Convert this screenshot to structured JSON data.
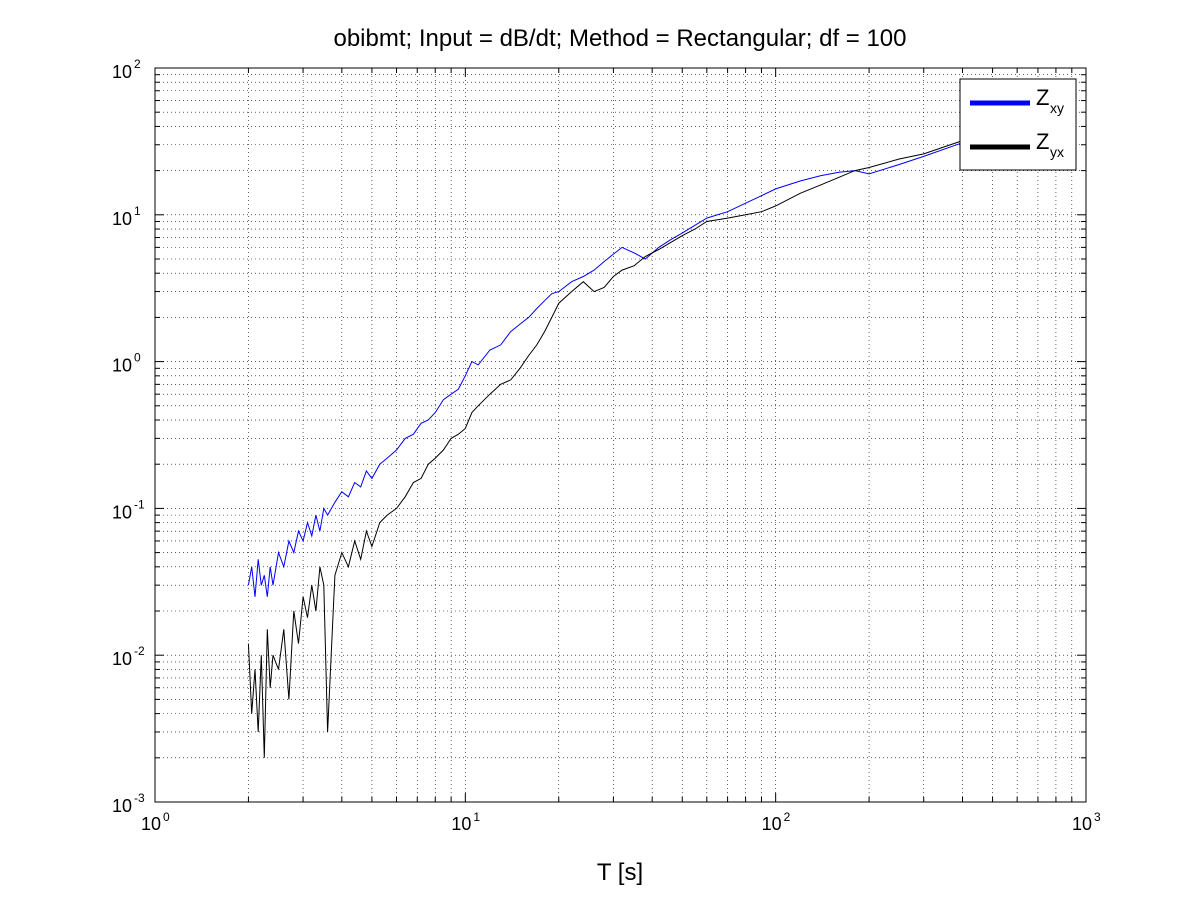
{
  "chart_data": {
    "type": "line",
    "title": "obibmt; Input = dB/dt; Method = Rectangular; df = 100",
    "xlabel": "T [s]",
    "ylabel": "",
    "xscale": "log",
    "yscale": "log",
    "xlim": [
      1,
      1000
    ],
    "ylim": [
      0.001,
      100
    ],
    "grid": true,
    "legend_position": "top-right",
    "x_tick_labels": [
      {
        "base": "10",
        "exp": "0"
      },
      {
        "base": "10",
        "exp": "1"
      },
      {
        "base": "10",
        "exp": "2"
      },
      {
        "base": "10",
        "exp": "3"
      }
    ],
    "y_tick_labels": [
      {
        "base": "10",
        "exp": "-3"
      },
      {
        "base": "10",
        "exp": "-2"
      },
      {
        "base": "10",
        "exp": "-1"
      },
      {
        "base": "10",
        "exp": "0"
      },
      {
        "base": "10",
        "exp": "1"
      },
      {
        "base": "10",
        "exp": "2"
      }
    ],
    "series": [
      {
        "name_main": "Z",
        "name_sub": "xy",
        "color": "#0000ff",
        "x": [
          2.0,
          2.05,
          2.1,
          2.15,
          2.2,
          2.25,
          2.3,
          2.35,
          2.4,
          2.5,
          2.6,
          2.7,
          2.8,
          2.9,
          3.0,
          3.1,
          3.2,
          3.3,
          3.4,
          3.5,
          3.6,
          3.8,
          4.0,
          4.2,
          4.4,
          4.6,
          4.8,
          5.0,
          5.3,
          5.6,
          6.0,
          6.4,
          6.8,
          7.2,
          7.6,
          8.0,
          8.5,
          9.0,
          9.5,
          10.0,
          10.5,
          11.0,
          12.0,
          13.0,
          14.0,
          15.0,
          16.0,
          17.0,
          18.0,
          19.0,
          20.0,
          22.0,
          24.0,
          26.0,
          28.0,
          30.0,
          32.0,
          35.0,
          38.0,
          42.0,
          46.0,
          50.0,
          55.0,
          60.0,
          70.0,
          80.0,
          90.0,
          100.0,
          120.0,
          140.0,
          160.0,
          180.0,
          200.0,
          250.0,
          300.0,
          400.0,
          500.0,
          600.0,
          700.0,
          850.0
        ],
        "y": [
          0.03,
          0.04,
          0.025,
          0.045,
          0.03,
          0.035,
          0.025,
          0.04,
          0.03,
          0.05,
          0.04,
          0.06,
          0.05,
          0.07,
          0.06,
          0.08,
          0.065,
          0.09,
          0.07,
          0.1,
          0.09,
          0.11,
          0.13,
          0.12,
          0.15,
          0.14,
          0.18,
          0.16,
          0.2,
          0.22,
          0.25,
          0.3,
          0.32,
          0.38,
          0.4,
          0.45,
          0.55,
          0.6,
          0.65,
          0.8,
          1.0,
          0.95,
          1.2,
          1.3,
          1.6,
          1.8,
          2.0,
          2.3,
          2.6,
          2.9,
          3.0,
          3.5,
          3.8,
          4.2,
          4.8,
          5.4,
          6.0,
          5.5,
          5.0,
          6.0,
          6.8,
          7.5,
          8.5,
          9.5,
          10.5,
          12.0,
          13.5,
          15.0,
          17.0,
          18.5,
          19.5,
          20.0,
          19.0,
          22.0,
          25.0,
          31.0,
          38.0,
          46.0,
          55.0,
          70.0
        ]
      },
      {
        "name_main": "Z",
        "name_sub": "yx",
        "color": "#000000",
        "x": [
          2.0,
          2.05,
          2.1,
          2.15,
          2.2,
          2.25,
          2.3,
          2.35,
          2.4,
          2.5,
          2.6,
          2.7,
          2.8,
          2.9,
          3.0,
          3.1,
          3.2,
          3.3,
          3.4,
          3.5,
          3.6,
          3.8,
          4.0,
          4.2,
          4.4,
          4.6,
          4.8,
          5.0,
          5.3,
          5.6,
          6.0,
          6.4,
          6.8,
          7.2,
          7.6,
          8.0,
          8.5,
          9.0,
          9.5,
          10.0,
          10.5,
          11.0,
          12.0,
          13.0,
          14.0,
          15.0,
          16.0,
          17.0,
          18.0,
          19.0,
          20.0,
          22.0,
          24.0,
          26.0,
          28.0,
          30.0,
          32.0,
          35.0,
          38.0,
          42.0,
          46.0,
          50.0,
          55.0,
          60.0,
          70.0,
          80.0,
          90.0,
          100.0,
          120.0,
          140.0,
          160.0,
          180.0,
          200.0,
          250.0,
          300.0,
          400.0,
          500.0,
          600.0,
          700.0,
          850.0
        ],
        "y": [
          0.012,
          0.004,
          0.008,
          0.003,
          0.01,
          0.002,
          0.015,
          0.006,
          0.01,
          0.008,
          0.015,
          0.005,
          0.02,
          0.012,
          0.025,
          0.018,
          0.03,
          0.02,
          0.04,
          0.03,
          0.003,
          0.035,
          0.05,
          0.04,
          0.06,
          0.045,
          0.07,
          0.055,
          0.08,
          0.09,
          0.1,
          0.12,
          0.15,
          0.16,
          0.2,
          0.22,
          0.25,
          0.3,
          0.32,
          0.35,
          0.45,
          0.5,
          0.6,
          0.7,
          0.75,
          0.9,
          1.1,
          1.3,
          1.6,
          2.0,
          2.5,
          3.0,
          3.5,
          3.0,
          3.2,
          3.8,
          4.2,
          4.5,
          5.2,
          5.8,
          6.5,
          7.2,
          8.0,
          9.0,
          9.5,
          10.0,
          10.5,
          11.5,
          14.0,
          16.0,
          18.0,
          20.0,
          21.0,
          24.0,
          26.0,
          32.0,
          38.0,
          45.0,
          52.0,
          65.0
        ]
      }
    ]
  }
}
